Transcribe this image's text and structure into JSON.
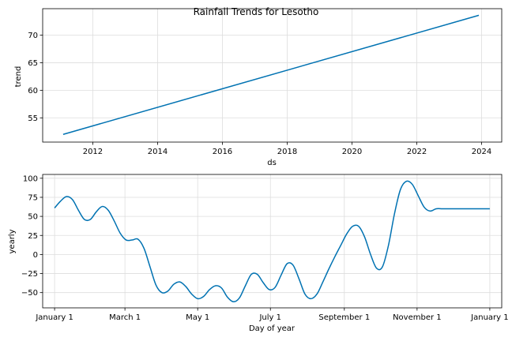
{
  "chart_data": [
    {
      "type": "line",
      "title": "Rainfall Trends for Lesotho",
      "xlabel": "ds",
      "ylabel": "trend",
      "x_axis_type": "date",
      "xlim": [
        "2010-06-15",
        "2024-08-15"
      ],
      "ylim": [
        50.6,
        74.8
      ],
      "grid": true,
      "x_ticks": [
        {
          "value": "2012-01-01",
          "label": "2012"
        },
        {
          "value": "2014-01-01",
          "label": "2014"
        },
        {
          "value": "2016-01-01",
          "label": "2016"
        },
        {
          "value": "2018-01-01",
          "label": "2018"
        },
        {
          "value": "2020-01-01",
          "label": "2020"
        },
        {
          "value": "2022-01-01",
          "label": "2022"
        },
        {
          "value": "2024-01-01",
          "label": "2024"
        }
      ],
      "y_ticks": [
        {
          "value": 55,
          "label": "55"
        },
        {
          "value": 60,
          "label": "60"
        },
        {
          "value": 65,
          "label": "65"
        },
        {
          "value": 70,
          "label": "70"
        }
      ],
      "series": [
        {
          "color": "#0072B2",
          "x": [
            "2011-02-01",
            "2023-12-01"
          ],
          "y": [
            52.0,
            73.6
          ]
        }
      ]
    },
    {
      "type": "line",
      "xlabel": "Day of year",
      "ylabel": "yearly",
      "xlim": [
        -10,
        375
      ],
      "ylim": [
        -70,
        105
      ],
      "grid": true,
      "x_ticks": [
        {
          "value": 0,
          "label": "January 1"
        },
        {
          "value": 59,
          "label": "March 1"
        },
        {
          "value": 120,
          "label": "May 1"
        },
        {
          "value": 181,
          "label": "July 1"
        },
        {
          "value": 243,
          "label": "September 1"
        },
        {
          "value": 304,
          "label": "November 1"
        },
        {
          "value": 365,
          "label": "January 1"
        }
      ],
      "y_ticks": [
        {
          "value": -50,
          "label": "−50"
        },
        {
          "value": -25,
          "label": "−25"
        },
        {
          "value": 0,
          "label": "0"
        },
        {
          "value": 25,
          "label": "25"
        },
        {
          "value": 50,
          "label": "50"
        },
        {
          "value": 75,
          "label": "75"
        },
        {
          "value": 100,
          "label": "100"
        }
      ],
      "series": [
        {
          "color": "#0072B2",
          "x": [
            0,
            5,
            10,
            15,
            20,
            25,
            30,
            35,
            40,
            45,
            50,
            55,
            60,
            65,
            70,
            75,
            80,
            85,
            90,
            95,
            100,
            105,
            110,
            115,
            120,
            125,
            130,
            135,
            140,
            145,
            150,
            155,
            160,
            165,
            170,
            175,
            180,
            185,
            190,
            195,
            200,
            205,
            210,
            215,
            220,
            225,
            230,
            235,
            240,
            245,
            250,
            255,
            260,
            265,
            270,
            275,
            280,
            285,
            290,
            295,
            300,
            305,
            310,
            315,
            320,
            325,
            330,
            335,
            340,
            345,
            350,
            355,
            360,
            365
          ],
          "y": [
            61,
            70,
            76,
            72,
            58,
            46,
            46,
            56,
            63,
            58,
            44,
            28,
            19,
            19,
            20,
            8,
            -16,
            -40,
            -50,
            -48,
            -39,
            -36,
            -42,
            -52,
            -58,
            -55,
            -46,
            -41,
            -44,
            -56,
            -62,
            -57,
            -41,
            -26,
            -26,
            -37,
            -46,
            -43,
            -27,
            -12,
            -14,
            -32,
            -52,
            -58,
            -52,
            -36,
            -19,
            -3,
            12,
            27,
            37,
            37,
            23,
            0,
            -18,
            -16,
            12,
            53,
            85,
            96,
            92,
            77,
            62,
            57,
            60,
            60,
            60,
            60,
            60,
            60,
            60,
            60,
            60,
            60
          ]
        }
      ]
    }
  ]
}
